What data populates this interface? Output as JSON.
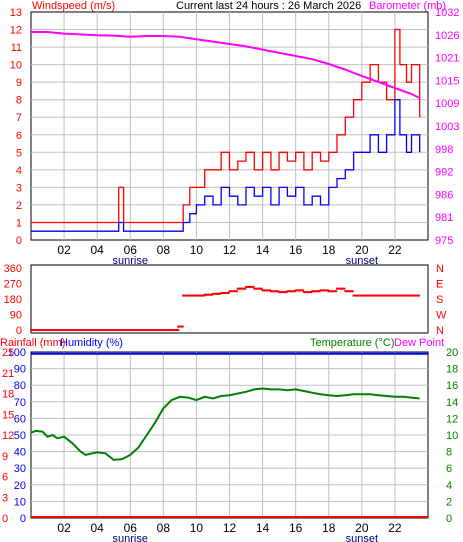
{
  "header": {
    "wind_label": "Windspeed (m/s)",
    "title": "Current last 24 hours : 26 March 2026",
    "baro_label": "Barometer (mb)"
  },
  "panel_labels": {
    "rain": "Rainfall (mm)",
    "humidity": "Humidity (%)",
    "temperature": "Temperature (°C)",
    "dewpoint": "Dew Point"
  },
  "x_ticks": [
    "02",
    "04",
    "06",
    "08",
    "10",
    "12",
    "14",
    "16",
    "18",
    "20",
    "22"
  ],
  "markers": {
    "sunrise": "sunrise",
    "sunset": "sunset"
  },
  "colors": {
    "wind": "#ff0000",
    "gust": "#ff0000",
    "avg": "#0000ff",
    "barometer": "#ff00ff",
    "direction": "#ff0000",
    "temperature": "#008000",
    "humidity": "#0000ff",
    "rain": "#ff0000",
    "grid": "#c0c0c0"
  },
  "chart_data": [
    {
      "type": "line",
      "title": "Current last 24 hours : 26 March 2026",
      "xlabel": "",
      "ylabel": "Windspeed (m/s)",
      "y2label": "Barometer (mb)",
      "x_range": [
        0,
        24
      ],
      "ylim": [
        0,
        13
      ],
      "y_ticks": [
        "0",
        "1",
        "2",
        "3",
        "4",
        "5",
        "6",
        "7",
        "8",
        "9",
        "10",
        "11",
        "12",
        "13"
      ],
      "y2lim": [
        975,
        1032
      ],
      "y2_ticks": [
        "975",
        "981",
        "986",
        "992",
        "998",
        "1003",
        "1009",
        "1015",
        "1021",
        "1026",
        "1032"
      ],
      "grid": true,
      "series": [
        {
          "name": "Windspeed (m/s)",
          "axis": "left",
          "x": [
            0,
            1,
            2,
            3,
            4,
            5,
            5.3,
            5.6,
            6,
            7,
            8,
            8.8,
            9.2,
            9.6,
            10,
            10.5,
            11,
            11.5,
            12,
            12.5,
            13,
            13.5,
            14,
            14.5,
            15,
            15.5,
            16,
            16.5,
            17,
            17.5,
            18,
            18.5,
            19,
            19.5,
            20,
            20.5,
            21,
            21.5,
            22,
            22.3,
            22.7,
            23,
            23.5
          ],
          "values": [
            1,
            1,
            1,
            1,
            1,
            1,
            3,
            1,
            1,
            1,
            1,
            1,
            2,
            3,
            3,
            4,
            4,
            5,
            4,
            4.5,
            5,
            4,
            5,
            4,
            5,
            4.5,
            5,
            4,
            5,
            4.5,
            5,
            6,
            7,
            8,
            9,
            10,
            9,
            8,
            12,
            10,
            9,
            10,
            7
          ]
        },
        {
          "name": "",
          "axis": "left",
          "x": [
            0,
            1,
            2,
            3,
            4,
            5,
            5.3,
            5.6,
            6,
            7,
            8,
            8.8,
            9.2,
            9.6,
            10,
            10.5,
            11,
            11.5,
            12,
            12.5,
            13,
            13.5,
            14,
            14.5,
            15,
            15.5,
            16,
            16.5,
            17,
            17.5,
            18,
            18.5,
            19,
            19.5,
            20,
            20.5,
            21,
            21.5,
            22,
            22.3,
            22.7,
            23,
            23.5
          ],
          "values": [
            0.5,
            0.5,
            0.5,
            0.5,
            0.5,
            0.5,
            1,
            0.5,
            0.5,
            0.5,
            0.5,
            0.5,
            1,
            1.5,
            2,
            2.5,
            2,
            3,
            2.5,
            2,
            3,
            2.5,
            3,
            2,
            3,
            2.5,
            3,
            2,
            2.5,
            2,
            3,
            3.5,
            4,
            5,
            5,
            6,
            5,
            6,
            8,
            6,
            5,
            6,
            5
          ]
        },
        {
          "name": "Barometer (mb)",
          "axis": "right",
          "x": [
            0,
            1,
            2,
            3,
            4,
            5,
            6,
            7,
            8,
            9,
            10,
            11,
            12,
            13,
            14,
            15,
            16,
            17,
            18,
            19,
            20,
            21,
            22,
            23,
            23.5
          ],
          "values": [
            1027,
            1027,
            1026.6,
            1026.4,
            1026.2,
            1026.1,
            1025.8,
            1026,
            1026,
            1025.8,
            1025.2,
            1024.6,
            1024,
            1023.4,
            1022.6,
            1021.8,
            1021,
            1020.2,
            1019,
            1017.6,
            1016,
            1014.5,
            1013,
            1011.5,
            1010.5
          ]
        }
      ]
    },
    {
      "type": "scatter",
      "ylabel": "",
      "x_range": [
        0,
        24
      ],
      "ylim": [
        0,
        360
      ],
      "y_ticks": [
        "0",
        "90",
        "180",
        "270",
        "360"
      ],
      "y2_ticks": [
        "N",
        "W",
        "S",
        "E",
        "N"
      ],
      "x": [
        0,
        1,
        2,
        3,
        4,
        5,
        6,
        7,
        8,
        8.9,
        9.2,
        9.5,
        10,
        10.5,
        11,
        11.5,
        12,
        12.5,
        13,
        13.5,
        14,
        14.5,
        15,
        15.5,
        16,
        16.5,
        17,
        17.5,
        18,
        18.5,
        19,
        19.5,
        20,
        20.5,
        21,
        21.5,
        22,
        22.5,
        23,
        23.5
      ],
      "values": [
        0,
        0,
        0,
        0,
        0,
        0,
        0,
        0,
        0,
        20,
        200,
        200,
        200,
        205,
        210,
        215,
        225,
        240,
        250,
        240,
        230,
        225,
        220,
        225,
        230,
        220,
        225,
        230,
        225,
        240,
        225,
        200,
        200,
        200,
        200,
        200,
        200,
        200,
        200,
        200
      ]
    },
    {
      "type": "line",
      "xlabel": "",
      "x_range": [
        0,
        24
      ],
      "ylim": [
        0,
        100
      ],
      "y_ticks": [
        "0",
        "10",
        "20",
        "30",
        "40",
        "50",
        "60",
        "70",
        "80",
        "90",
        "100"
      ],
      "rain_ticks": [
        "0",
        "3",
        "6",
        "9",
        "12",
        "15",
        "18",
        "21",
        "25"
      ],
      "y2lim": [
        0,
        20
      ],
      "y2_ticks": [
        "0",
        "2",
        "4",
        "6",
        "8",
        "10",
        "12",
        "14",
        "16",
        "18",
        "20"
      ],
      "grid": true,
      "series": [
        {
          "name": "Temperature (°C)",
          "axis": "right",
          "x": [
            0,
            0.3,
            0.7,
            1,
            1.3,
            1.6,
            2,
            2.5,
            3,
            3.3,
            3.7,
            4,
            4.5,
            5,
            5.5,
            6,
            6.5,
            7,
            7.5,
            8,
            8.5,
            9,
            9.5,
            10,
            10.5,
            11,
            11.5,
            12,
            12.5,
            13,
            13.5,
            14,
            14.5,
            15,
            15.5,
            16,
            16.5,
            17,
            17.5,
            18,
            18.5,
            19,
            19.5,
            20,
            20.5,
            21,
            21.5,
            22,
            22.5,
            23,
            23.5
          ],
          "values": [
            10.3,
            10.5,
            10.4,
            9.8,
            10,
            9.6,
            9.8,
            9,
            8,
            7.6,
            7.8,
            7.9,
            7.8,
            7,
            7.1,
            7.6,
            8.5,
            10,
            11.5,
            13.2,
            14.2,
            14.6,
            14.5,
            14.2,
            14.6,
            14.4,
            14.7,
            14.8,
            15,
            15.2,
            15.5,
            15.6,
            15.5,
            15.5,
            15.4,
            15.5,
            15.3,
            15.1,
            14.9,
            14.8,
            14.7,
            14.8,
            14.9,
            14.9,
            14.9,
            14.8,
            14.7,
            14.6,
            14.6,
            14.5,
            14.4
          ]
        },
        {
          "name": "Humidity (%)",
          "axis": "left",
          "x": [
            0,
            24
          ],
          "values": [
            99,
            99
          ]
        },
        {
          "name": "Rainfall (mm)",
          "axis": "rain",
          "x": [
            0,
            24
          ],
          "values": [
            0,
            0
          ]
        }
      ]
    }
  ]
}
